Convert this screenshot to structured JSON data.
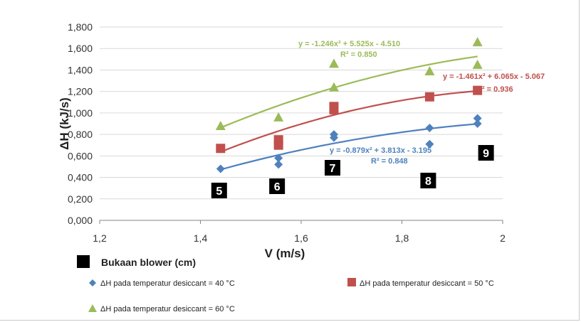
{
  "chart_data": {
    "type": "scatter",
    "xlabel": "V (m/s)",
    "ylabel": "ΔH (kJ/s)",
    "xlim": [
      1.2,
      2.0
    ],
    "ylim": [
      0,
      1.8
    ],
    "x_ticks": [
      "1,2",
      "1,4",
      "1,6",
      "1,8",
      "2"
    ],
    "y_ticks": [
      "0,000",
      "0,200",
      "0,400",
      "0,600",
      "0,800",
      "1,000",
      "1,200",
      "1,400",
      "1,600",
      "1,800"
    ],
    "grid": "horizontal",
    "series": [
      {
        "name": "ΔH pada temperatur desiccant = 40 °C",
        "color": "#4f81bd",
        "marker": "diamond",
        "points": [
          [
            1.44,
            0.48
          ],
          [
            1.555,
            0.52
          ],
          [
            1.555,
            0.58
          ],
          [
            1.665,
            0.77
          ],
          [
            1.665,
            0.8
          ],
          [
            1.855,
            0.71
          ],
          [
            1.855,
            0.86
          ],
          [
            1.95,
            0.9
          ],
          [
            1.95,
            0.95
          ]
        ],
        "trendline": {
          "a": -0.879,
          "b": 3.813,
          "c": -3.195,
          "x_range": [
            1.44,
            1.95
          ]
        },
        "equation": "y = -0.879x² + 3.813x - 3.195",
        "r2": "R² = 0.848"
      },
      {
        "name": "ΔH pada temperatur desiccant = 50 °C",
        "color": "#c0504d",
        "marker": "square",
        "points": [
          [
            1.44,
            0.67
          ],
          [
            1.555,
            0.7
          ],
          [
            1.555,
            0.75
          ],
          [
            1.665,
            1.03
          ],
          [
            1.665,
            1.06
          ],
          [
            1.855,
            1.15
          ],
          [
            1.95,
            1.21
          ]
        ],
        "trendline": {
          "a": -1.461,
          "b": 6.065,
          "c": -5.067,
          "x_range": [
            1.44,
            1.95
          ]
        },
        "equation": "y = -1.461x² + 6.065x - 5.067",
        "r2": "R² = 0.936"
      },
      {
        "name": "ΔH pada temperatur desiccant = 60 °C",
        "color": "#9bbb59",
        "marker": "triangle",
        "points": [
          [
            1.44,
            0.88
          ],
          [
            1.555,
            0.96
          ],
          [
            1.665,
            1.24
          ],
          [
            1.665,
            1.46
          ],
          [
            1.855,
            1.39
          ],
          [
            1.95,
            1.45
          ],
          [
            1.95,
            1.66
          ]
        ],
        "trendline": {
          "a": -1.246,
          "b": 5.525,
          "c": -4.51,
          "x_range": [
            1.44,
            1.95
          ]
        },
        "equation": "y = -1.246x² + 5.525x - 4.510",
        "r2": "R² = 0.850"
      }
    ],
    "blower_openings": [
      {
        "label": "5",
        "x": 1.44
      },
      {
        "label": "6",
        "x": 1.555
      },
      {
        "label": "7",
        "x": 1.665
      },
      {
        "label": "8",
        "x": 1.855
      },
      {
        "label": "9",
        "x": 1.95
      }
    ],
    "blower_legend": "Bukaan blower (cm)"
  }
}
